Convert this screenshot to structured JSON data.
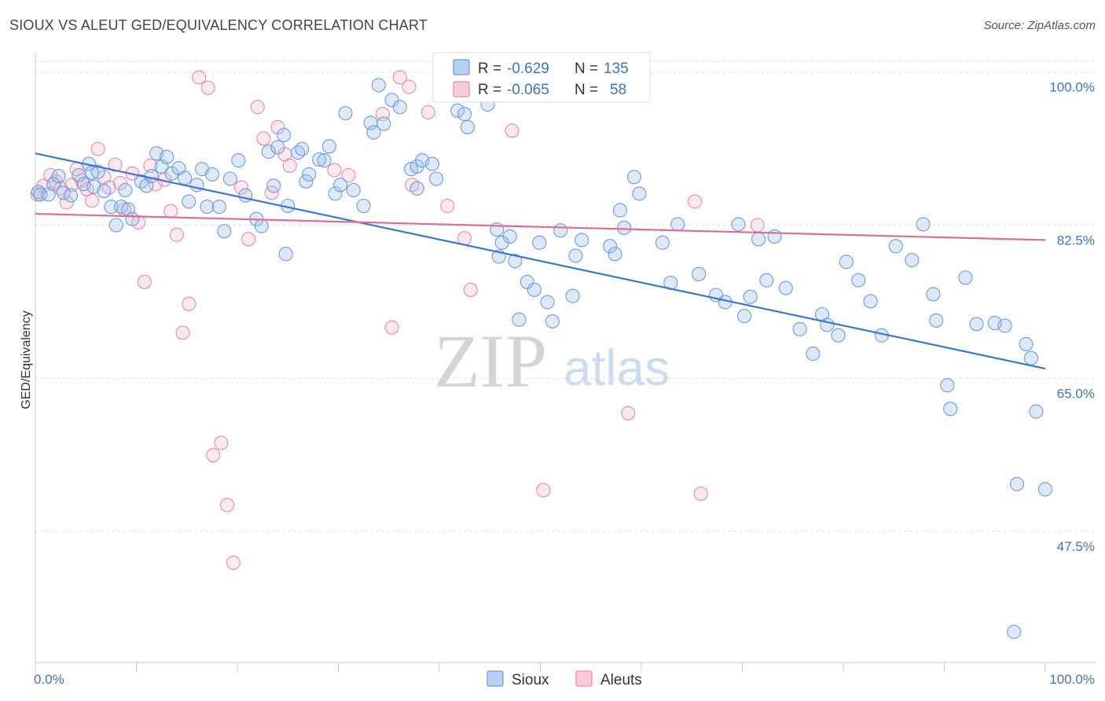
{
  "title": "SIOUX VS ALEUT GED/EQUIVALENCY CORRELATION CHART",
  "source": "Source: ZipAtlas.com",
  "watermark": {
    "zip": "ZIP",
    "atlas": "atlas"
  },
  "legend_top": {
    "rows": [
      {
        "r_label": "R =",
        "r_value": "-0.629",
        "n_label": "N =",
        "n_value": "135",
        "color": "#9ec1ee",
        "stroke": "#6b9be0"
      },
      {
        "r_label": "R =",
        "r_value": "-0.065",
        "n_label": "N =",
        "n_value": "58",
        "color": "#f6bccd",
        "stroke": "#e98aa7"
      }
    ]
  },
  "legend_bottom": [
    {
      "label": "Sioux",
      "color": "#9ec1ee",
      "stroke": "#6b9be0"
    },
    {
      "label": "Aleuts",
      "color": "#f6bccd",
      "stroke": "#e98aa7"
    }
  ],
  "chart_data": {
    "type": "scatter",
    "title": "SIOUX VS ALEUT GED/EQUIVALENCY CORRELATION CHART",
    "xlabel": "",
    "ylabel": "GED/Equivalency",
    "xlim": [
      0,
      100
    ],
    "ylim": [
      32.5,
      101.5
    ],
    "x_tick_labels": [
      "0.0%",
      "100.0%"
    ],
    "y_ticks": [
      {
        "value": 100.0,
        "label": "100.0%"
      },
      {
        "value": 82.5,
        "label": "82.5%"
      },
      {
        "value": 65.0,
        "label": "65.0%"
      },
      {
        "value": 47.5,
        "label": "47.5%"
      }
    ],
    "grid": "dashed-horizontal",
    "series": [
      {
        "name": "Sioux",
        "color": "#9ec1ee",
        "stroke": "#6b9be0",
        "trend": {
          "x": [
            0,
            100
          ],
          "y": [
            90.7,
            66.1
          ],
          "color": "#3a78d0"
        },
        "points": [
          [
            0.3,
            86.3
          ],
          [
            0.5,
            86.0
          ],
          [
            1.3,
            86.0
          ],
          [
            1.8,
            87.2
          ],
          [
            2.3,
            88.1
          ],
          [
            2.8,
            86.2
          ],
          [
            3.5,
            85.9
          ],
          [
            4.3,
            88.2
          ],
          [
            4.8,
            87.2
          ],
          [
            5.3,
            89.5
          ],
          [
            5.6,
            88.5
          ],
          [
            6.2,
            88.6
          ],
          [
            5.8,
            86.9
          ],
          [
            6.8,
            86.4
          ],
          [
            7.5,
            84.6
          ],
          [
            8.0,
            82.5
          ],
          [
            8.5,
            84.6
          ],
          [
            8.9,
            86.5
          ],
          [
            9.2,
            84.3
          ],
          [
            9.6,
            83.2
          ],
          [
            10.5,
            87.5
          ],
          [
            11.0,
            87.0
          ],
          [
            11.5,
            88.1
          ],
          [
            12.0,
            90.7
          ],
          [
            12.5,
            89.2
          ],
          [
            13.0,
            90.3
          ],
          [
            13.5,
            88.4
          ],
          [
            14.2,
            89.0
          ],
          [
            14.8,
            87.9
          ],
          [
            15.2,
            85.2
          ],
          [
            16.0,
            87.1
          ],
          [
            16.5,
            88.9
          ],
          [
            17.0,
            84.6
          ],
          [
            17.5,
            88.3
          ],
          [
            18.2,
            84.6
          ],
          [
            18.7,
            81.8
          ],
          [
            19.3,
            87.8
          ],
          [
            20.1,
            89.9
          ],
          [
            20.8,
            85.9
          ],
          [
            21.9,
            83.2
          ],
          [
            22.4,
            82.4
          ],
          [
            23.1,
            90.9
          ],
          [
            23.6,
            87.0
          ],
          [
            24.0,
            91.4
          ],
          [
            24.6,
            92.8
          ],
          [
            24.8,
            79.2
          ],
          [
            25.0,
            84.7
          ],
          [
            26.0,
            90.8
          ],
          [
            26.4,
            91.2
          ],
          [
            26.8,
            87.5
          ],
          [
            27.1,
            88.3
          ],
          [
            28.1,
            90.0
          ],
          [
            28.6,
            89.9
          ],
          [
            29.1,
            91.5
          ],
          [
            29.7,
            86.1
          ],
          [
            30.2,
            87.1
          ],
          [
            30.7,
            95.3
          ],
          [
            31.5,
            86.5
          ],
          [
            32.5,
            84.7
          ],
          [
            33.2,
            94.2
          ],
          [
            33.5,
            93.1
          ],
          [
            34.0,
            98.5
          ],
          [
            34.5,
            94.1
          ],
          [
            35.3,
            96.8
          ],
          [
            36.1,
            96.0
          ],
          [
            37.2,
            88.9
          ],
          [
            37.8,
            89.2
          ],
          [
            37.8,
            86.7
          ],
          [
            38.3,
            89.9
          ],
          [
            39.3,
            89.5
          ],
          [
            39.7,
            87.8
          ],
          [
            41.8,
            95.6
          ],
          [
            42.5,
            95.2
          ],
          [
            42.8,
            93.7
          ],
          [
            44.2,
            98.5
          ],
          [
            44.8,
            96.3
          ],
          [
            45.7,
            82.0
          ],
          [
            45.9,
            78.9
          ],
          [
            46.2,
            80.5
          ],
          [
            47.0,
            81.2
          ],
          [
            47.5,
            78.4
          ],
          [
            47.9,
            71.7
          ],
          [
            48.7,
            76.0
          ],
          [
            49.4,
            75.1
          ],
          [
            49.9,
            80.5
          ],
          [
            50.7,
            73.7
          ],
          [
            51.2,
            71.5
          ],
          [
            52.0,
            81.9
          ],
          [
            53.2,
            74.4
          ],
          [
            53.5,
            79.0
          ],
          [
            54.1,
            80.8
          ],
          [
            56.9,
            80.1
          ],
          [
            57.4,
            79.2
          ],
          [
            57.9,
            84.2
          ],
          [
            58.3,
            82.2
          ],
          [
            59.3,
            88.0
          ],
          [
            59.8,
            86.1
          ],
          [
            62.1,
            80.5
          ],
          [
            62.9,
            75.9
          ],
          [
            63.6,
            82.6
          ],
          [
            65.7,
            76.9
          ],
          [
            67.4,
            74.5
          ],
          [
            68.3,
            73.7
          ],
          [
            69.6,
            82.6
          ],
          [
            70.2,
            72.1
          ],
          [
            70.8,
            74.3
          ],
          [
            71.6,
            80.9
          ],
          [
            72.4,
            76.2
          ],
          [
            73.2,
            81.2
          ],
          [
            74.3,
            75.3
          ],
          [
            75.7,
            70.6
          ],
          [
            77.0,
            67.8
          ],
          [
            77.9,
            72.3
          ],
          [
            78.4,
            71.1
          ],
          [
            79.5,
            69.9
          ],
          [
            80.3,
            78.3
          ],
          [
            81.5,
            76.2
          ],
          [
            82.7,
            73.8
          ],
          [
            83.8,
            69.9
          ],
          [
            85.2,
            80.1
          ],
          [
            86.8,
            78.5
          ],
          [
            87.9,
            82.6
          ],
          [
            88.9,
            74.6
          ],
          [
            89.2,
            71.6
          ],
          [
            90.3,
            64.2
          ],
          [
            90.6,
            61.5
          ],
          [
            92.1,
            76.5
          ],
          [
            93.2,
            71.2
          ],
          [
            95.0,
            71.3
          ],
          [
            96.0,
            71.0
          ],
          [
            97.2,
            52.9
          ],
          [
            98.1,
            68.9
          ],
          [
            98.6,
            67.3
          ],
          [
            99.1,
            61.2
          ],
          [
            100.0,
            52.3
          ],
          [
            96.9,
            36.0
          ]
        ]
      },
      {
        "name": "Aleuts",
        "color": "#f6bccd",
        "stroke": "#e98aa7",
        "trend": {
          "x": [
            0,
            100
          ],
          "y": [
            83.8,
            80.8
          ],
          "color": "#e06b94"
        },
        "points": [
          [
            0.2,
            86.0
          ],
          [
            0.8,
            87.0
          ],
          [
            1.5,
            88.2
          ],
          [
            2.0,
            87.5
          ],
          [
            2.5,
            86.7
          ],
          [
            3.1,
            85.1
          ],
          [
            3.6,
            87.1
          ],
          [
            4.1,
            88.9
          ],
          [
            4.6,
            87.6
          ],
          [
            5.1,
            86.6
          ],
          [
            5.6,
            85.3
          ],
          [
            6.2,
            91.2
          ],
          [
            6.8,
            88.0
          ],
          [
            7.3,
            86.8
          ],
          [
            7.9,
            89.4
          ],
          [
            8.4,
            87.3
          ],
          [
            8.8,
            84.3
          ],
          [
            9.6,
            88.4
          ],
          [
            10.2,
            82.8
          ],
          [
            10.8,
            76.0
          ],
          [
            11.4,
            89.3
          ],
          [
            11.9,
            87.2
          ],
          [
            12.8,
            87.7
          ],
          [
            13.4,
            84.1
          ],
          [
            14.0,
            81.4
          ],
          [
            14.6,
            70.2
          ],
          [
            15.2,
            73.5
          ],
          [
            16.2,
            99.4
          ],
          [
            17.1,
            98.2
          ],
          [
            17.6,
            56.2
          ],
          [
            18.4,
            57.6
          ],
          [
            19.0,
            50.5
          ],
          [
            19.6,
            43.9
          ],
          [
            20.4,
            86.8
          ],
          [
            21.1,
            80.9
          ],
          [
            22.0,
            96.0
          ],
          [
            22.6,
            92.4
          ],
          [
            23.4,
            86.2
          ],
          [
            24.0,
            93.7
          ],
          [
            24.7,
            90.6
          ],
          [
            25.2,
            89.3
          ],
          [
            29.6,
            88.8
          ],
          [
            31.0,
            88.2
          ],
          [
            34.4,
            95.2
          ],
          [
            35.3,
            70.8
          ],
          [
            36.1,
            99.4
          ],
          [
            37.0,
            98.3
          ],
          [
            37.3,
            87.1
          ],
          [
            38.9,
            95.4
          ],
          [
            40.8,
            84.7
          ],
          [
            42.5,
            81.0
          ],
          [
            43.1,
            75.1
          ],
          [
            47.2,
            93.3
          ],
          [
            50.3,
            52.2
          ],
          [
            58.7,
            61.0
          ],
          [
            65.3,
            85.2
          ],
          [
            65.9,
            51.8
          ],
          [
            71.5,
            82.5
          ]
        ]
      }
    ]
  }
}
